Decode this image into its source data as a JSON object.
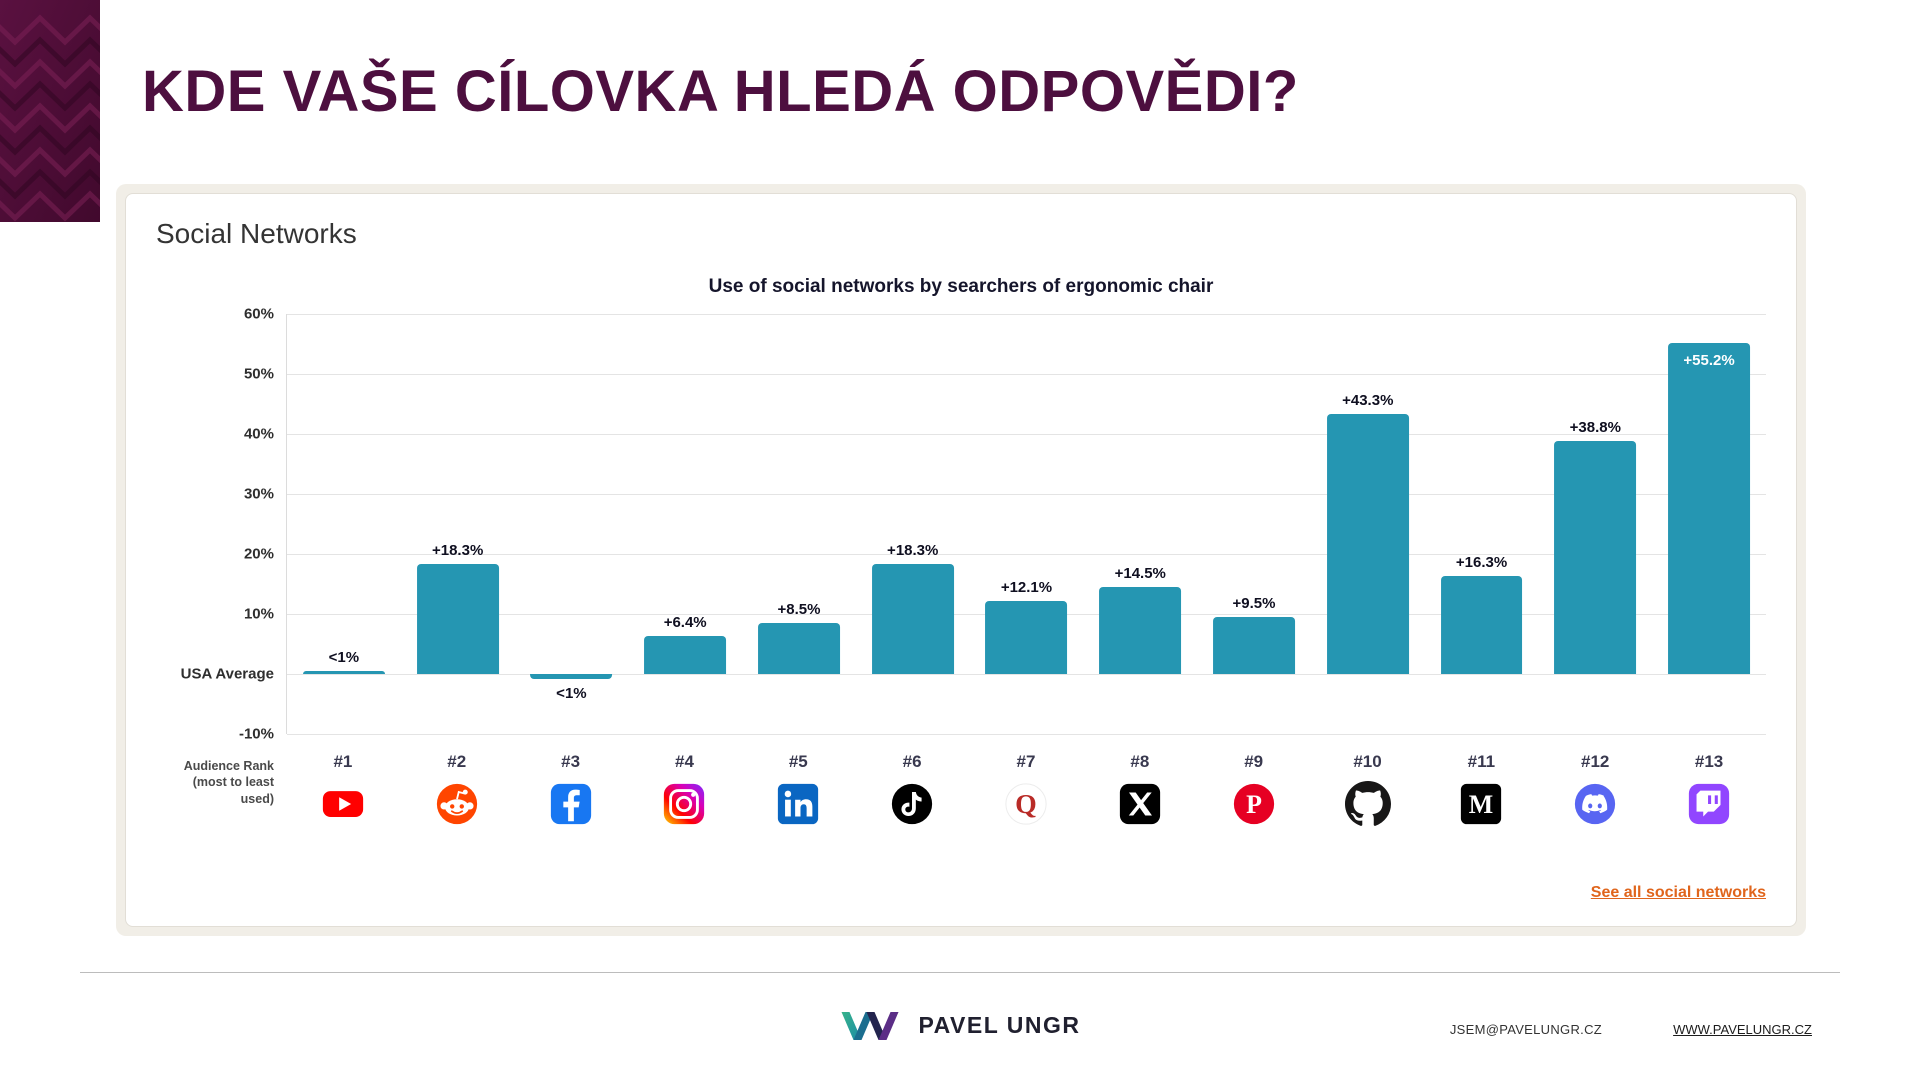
{
  "page": {
    "title": "KDE VAŠE CÍLOVKA HLEDÁ ODPOVĚDI?"
  },
  "panel": {
    "heading": "Social Networks",
    "see_all_link": "See all social networks",
    "accent_color": "#e0651c"
  },
  "chart_data": {
    "type": "bar",
    "title": "Use of social networks by searchers of ergonomic chair",
    "ylim": [
      -10,
      60
    ],
    "grid": true,
    "legend": false,
    "bar_color": "#2596B2",
    "yticks": [
      {
        "value": 60,
        "label": "60%"
      },
      {
        "value": 50,
        "label": "50%"
      },
      {
        "value": 40,
        "label": "40%"
      },
      {
        "value": 30,
        "label": "30%"
      },
      {
        "value": 20,
        "label": "20%"
      },
      {
        "value": 10,
        "label": "10%"
      },
      {
        "value": 0,
        "label": "USA Average"
      },
      {
        "value": -10,
        "label": "-10%"
      }
    ],
    "x_axis_caption_line1": "Audience Rank",
    "x_axis_caption_line2": "(most to least used)",
    "networks": [
      {
        "rank": "#1",
        "name": "YouTube",
        "icon": "youtube-icon",
        "value": 0.5,
        "label": "<1%",
        "label_position": "above"
      },
      {
        "rank": "#2",
        "name": "Reddit",
        "icon": "reddit-icon",
        "value": 18.3,
        "label": "+18.3%",
        "label_position": "above"
      },
      {
        "rank": "#3",
        "name": "Facebook",
        "icon": "facebook-icon",
        "value": -0.8,
        "label": "<1%",
        "label_position": "below"
      },
      {
        "rank": "#4",
        "name": "Instagram",
        "icon": "instagram-icon",
        "value": 6.4,
        "label": "+6.4%",
        "label_position": "above"
      },
      {
        "rank": "#5",
        "name": "LinkedIn",
        "icon": "linkedin-icon",
        "value": 8.5,
        "label": "+8.5%",
        "label_position": "above"
      },
      {
        "rank": "#6",
        "name": "TikTok",
        "icon": "tiktok-icon",
        "value": 18.3,
        "label": "+18.3%",
        "label_position": "above"
      },
      {
        "rank": "#7",
        "name": "Quora",
        "icon": "quora-icon",
        "value": 12.1,
        "label": "+12.1%",
        "label_position": "above"
      },
      {
        "rank": "#8",
        "name": "X",
        "icon": "x-icon",
        "value": 14.5,
        "label": "+14.5%",
        "label_position": "above"
      },
      {
        "rank": "#9",
        "name": "Pinterest",
        "icon": "pinterest-icon",
        "value": 9.5,
        "label": "+9.5%",
        "label_position": "above"
      },
      {
        "rank": "#10",
        "name": "GitHub",
        "icon": "github-icon",
        "value": 43.3,
        "label": "+43.3%",
        "label_position": "above"
      },
      {
        "rank": "#11",
        "name": "Medium",
        "icon": "medium-icon",
        "value": 16.3,
        "label": "+16.3%",
        "label_position": "above"
      },
      {
        "rank": "#12",
        "name": "Discord",
        "icon": "discord-icon",
        "value": 38.8,
        "label": "+38.8%",
        "label_position": "above"
      },
      {
        "rank": "#13",
        "name": "Twitch",
        "icon": "twitch-icon",
        "value": 55.2,
        "label": "+55.2%",
        "label_position": "inside"
      }
    ]
  },
  "footer": {
    "brand": "PAVEL UNGR",
    "email": "JSEM@PAVELUNGR.CZ",
    "website": "WWW.PAVELUNGR.CZ"
  }
}
